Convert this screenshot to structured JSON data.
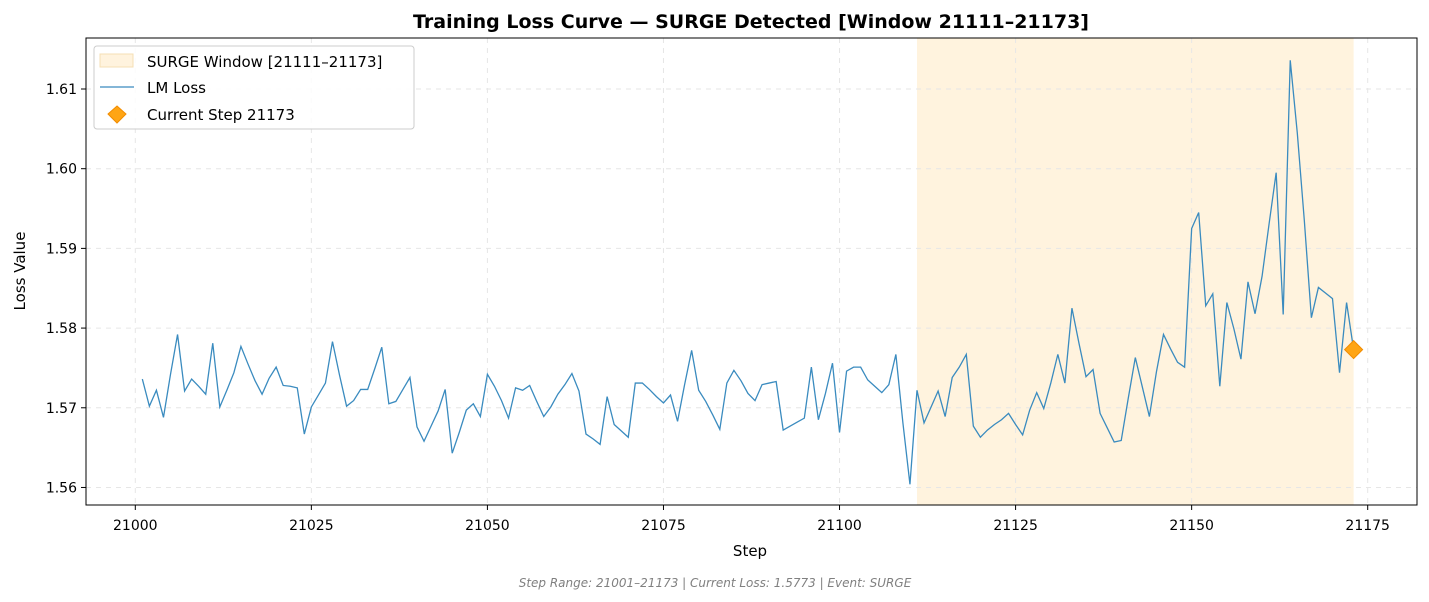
{
  "chart_data": {
    "type": "line",
    "title": "Training Loss Curve — SURGE Detected [Window 21111–21173]",
    "xlabel": "Step",
    "ylabel": "Loss Value",
    "xlim": [
      20993,
      21182
    ],
    "ylim": [
      1.5578,
      1.6164
    ],
    "xticks": [
      21000,
      21025,
      21050,
      21075,
      21100,
      21125,
      21150,
      21175
    ],
    "yticks": [
      1.56,
      1.57,
      1.58,
      1.59,
      1.6,
      1.61
    ],
    "xtick_labels": [
      "21000",
      "21025",
      "21050",
      "21075",
      "21100",
      "21125",
      "21150",
      "21175"
    ],
    "ytick_labels": [
      "1.56",
      "1.57",
      "1.58",
      "1.59",
      "1.60",
      "1.61"
    ],
    "grid": true,
    "legend_position": "top-left",
    "surge_window": {
      "label": "SURGE Window [21111–21173]",
      "start": 21111,
      "end": 21173,
      "color": "#fff3de"
    },
    "series": [
      {
        "name": "LM Loss",
        "color": "#3a8bbf",
        "x_start": 21001,
        "values": [
          1.5736,
          1.5702,
          1.5722,
          1.5688,
          1.5742,
          1.5792,
          1.5721,
          1.5736,
          1.5727,
          1.5717,
          1.5781,
          1.5701,
          1.5722,
          1.5744,
          1.5777,
          1.5755,
          1.5734,
          1.5717,
          1.5737,
          1.5751,
          1.5728,
          1.5727,
          1.5725,
          1.5667,
          1.5701,
          1.5716,
          1.5731,
          1.5783,
          1.5741,
          1.5702,
          1.5709,
          1.5723,
          1.5723,
          1.5749,
          1.5776,
          1.5705,
          1.5708,
          1.5723,
          1.5738,
          1.5676,
          1.5658,
          1.5677,
          1.5696,
          1.5723,
          1.5643,
          1.5669,
          1.5697,
          1.5705,
          1.5689,
          1.5742,
          1.5727,
          1.5709,
          1.5687,
          1.5725,
          1.5722,
          1.5728,
          1.5708,
          1.5689,
          1.5701,
          1.5717,
          1.5729,
          1.5743,
          1.5721,
          1.5667,
          1.5661,
          1.5654,
          1.5714,
          1.5679,
          1.5671,
          1.5663,
          1.5731,
          1.5731,
          1.5723,
          1.5714,
          1.5706,
          1.5716,
          1.5683,
          1.5729,
          1.5772,
          1.5722,
          1.5708,
          1.5691,
          1.5673,
          1.5731,
          1.5747,
          1.5734,
          1.5718,
          1.5709,
          1.5729,
          1.5731,
          1.5733,
          1.5672,
          1.5677,
          1.5682,
          1.5687,
          1.5751,
          1.5685,
          1.5718,
          1.5756,
          1.5669,
          1.5746,
          1.5751,
          1.5751,
          1.5735,
          1.5727,
          1.5719,
          1.5729,
          1.5767,
          1.5681,
          1.5604,
          1.5722,
          1.5681,
          1.5701,
          1.5721,
          1.5689,
          1.5738,
          1.5751,
          1.5767,
          1.5677,
          1.5663,
          1.5672,
          1.5679,
          1.5685,
          1.5693,
          1.5679,
          1.5666,
          1.5697,
          1.5719,
          1.5699,
          1.5731,
          1.5767,
          1.5731,
          1.5825,
          1.5781,
          1.5739,
          1.5748,
          1.5693,
          1.5675,
          1.5657,
          1.5659,
          1.5712,
          1.5763,
          1.5726,
          1.5689,
          1.5745,
          1.5792,
          1.5774,
          1.5757,
          1.5751,
          1.5925,
          1.5945,
          1.5828,
          1.5843,
          1.5727,
          1.5832,
          1.5799,
          1.5761,
          1.5858,
          1.5818,
          1.5865,
          1.5931,
          1.5995,
          1.5817,
          1.6136,
          1.6045,
          1.5935,
          1.5813,
          1.5851,
          1.5844,
          1.5837,
          1.5744,
          1.5832,
          1.5773
        ]
      }
    ],
    "marker": {
      "label": "Current Step 21173",
      "x": 21173,
      "y": 1.5773,
      "color": "#ffa514",
      "edge_color": "#f28c00",
      "shape": "diamond"
    },
    "footer": "Step Range: 21001–21173 | Current Loss: 1.5773 | Event: SURGE"
  }
}
